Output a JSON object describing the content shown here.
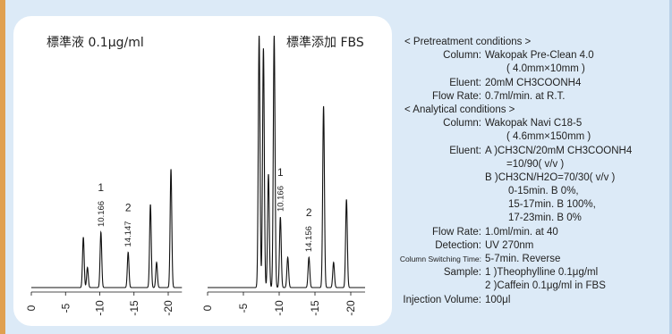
{
  "colors": {
    "frame": "#dceaf7",
    "panel": "#ffffff",
    "accent_bar": "#e0a050",
    "trace": "#111111"
  },
  "chart_data": [
    {
      "type": "line",
      "title": "標準液 0.1μg/ml",
      "x_ticks": [
        "0",
        "-5",
        "-10",
        "-15",
        "-20"
      ],
      "xlim": [
        0,
        -22
      ],
      "peaks": [
        {
          "time": 7.6,
          "height": 0.2
        },
        {
          "time": 8.2,
          "height": 0.08
        },
        {
          "time": 10.166,
          "height": 0.22,
          "label": "1",
          "rt_label": "10.166"
        },
        {
          "time": 14.147,
          "height": 0.14,
          "label": "2",
          "rt_label": "14.147"
        },
        {
          "time": 17.4,
          "height": 0.33
        },
        {
          "time": 18.3,
          "height": 0.1
        },
        {
          "time": 20.4,
          "height": 0.47
        }
      ]
    },
    {
      "type": "line",
      "title": "標準添加 FBS",
      "x_ticks": [
        "0",
        "-5",
        "-10",
        "-15",
        "-20"
      ],
      "xlim": [
        0,
        -22
      ],
      "peaks": [
        {
          "time": 7.2,
          "height": 1.0
        },
        {
          "time": 7.8,
          "height": 0.95
        },
        {
          "time": 8.5,
          "height": 0.45
        },
        {
          "time": 9.3,
          "height": 1.0
        },
        {
          "time": 10.166,
          "height": 0.28,
          "label": "1",
          "rt_label": "10.166"
        },
        {
          "time": 11.2,
          "height": 0.12
        },
        {
          "time": 14.156,
          "height": 0.12,
          "label": "2",
          "rt_label": "14.156"
        },
        {
          "time": 16.2,
          "height": 0.72
        },
        {
          "time": 17.6,
          "height": 0.1
        },
        {
          "time": 19.4,
          "height": 0.35
        }
      ]
    }
  ],
  "conditions": {
    "pre_header": "< Pretreatment conditions >",
    "pre_column_label": "Column:",
    "pre_column_value": "Wakopak Pre-Clean 4.0",
    "pre_column_dim": "( 4.0mm×10mm )",
    "pre_eluent_label": "Eluent:",
    "pre_eluent_value": "20mM CH3COONH4",
    "pre_flow_label": "Flow Rate:",
    "pre_flow_value": "0.7ml/min. at R.T.",
    "ana_header": "< Analytical conditions >",
    "ana_column_label": "Column:",
    "ana_column_value": "Wakopak Navi C18-5",
    "ana_column_dim": "( 4.6mm×150mm )",
    "ana_eluent_label": "Eluent:",
    "ana_eluent_a1": "A )CH3CN/20mM CH3COONH4",
    "ana_eluent_a2": "=10/90( v/v )",
    "ana_eluent_b1": "B )CH3CN/H2O=70/30( v/v )",
    "grad1": "0-15min. B     0%,",
    "grad2": "15-17min. B 100%,",
    "grad3": "17-23min. B     0%",
    "ana_flow_label": "Flow Rate:",
    "ana_flow_value": "1.0ml/min. at 40",
    "det_label": "Detection:",
    "det_value": "UV 270nm",
    "switch_label": "Column Switching Time:",
    "switch_value": "5-7min. Reverse",
    "sample_label": "Sample:",
    "sample1": "1 )Theophylline 0.1μg/ml",
    "sample2": "2 )Caffein 0.1μg/ml in FBS",
    "inj_label": "Injection Volume:",
    "inj_value": "100μl"
  }
}
